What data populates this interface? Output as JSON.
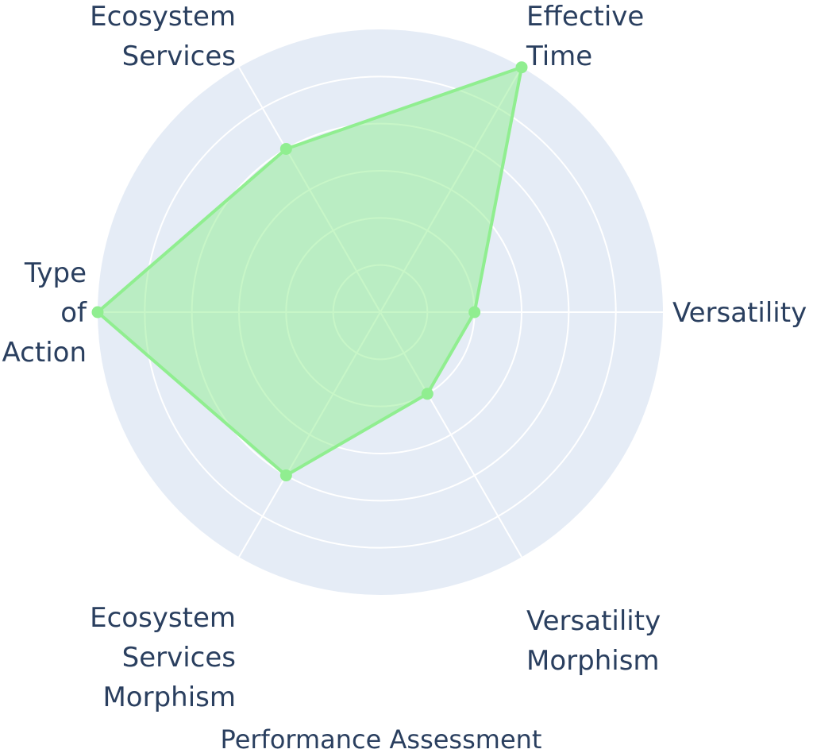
{
  "chart_data": {
    "type": "radar",
    "title": "",
    "xlabel": "Performance Assessment",
    "axes": [
      {
        "key": "versatility",
        "label": [
          "Versatility"
        ]
      },
      {
        "key": "effective-time",
        "label": [
          "Effective",
          "Time"
        ]
      },
      {
        "key": "ecosystem-services",
        "label": [
          "Ecosystem",
          "Services"
        ]
      },
      {
        "key": "type-of-action",
        "label": [
          "Type",
          "of",
          "Action"
        ]
      },
      {
        "key": "ecosystem-services-morphism",
        "label": [
          "Ecosystem",
          "Services",
          "Morphism"
        ]
      },
      {
        "key": "versatility-morphism",
        "label": [
          "Versatility",
          "Morphism"
        ]
      }
    ],
    "radial_range": [
      0,
      6
    ],
    "grid": true,
    "series": [
      {
        "values": [
          2,
          6,
          4,
          6,
          4,
          2
        ],
        "color": "#90EE90",
        "fill": "rgba(144,238,144,0.5)"
      }
    ],
    "colors": {
      "plot_bg": "#e5ecf6",
      "grid": "#ffffff",
      "text": "#2a3f5f"
    }
  }
}
